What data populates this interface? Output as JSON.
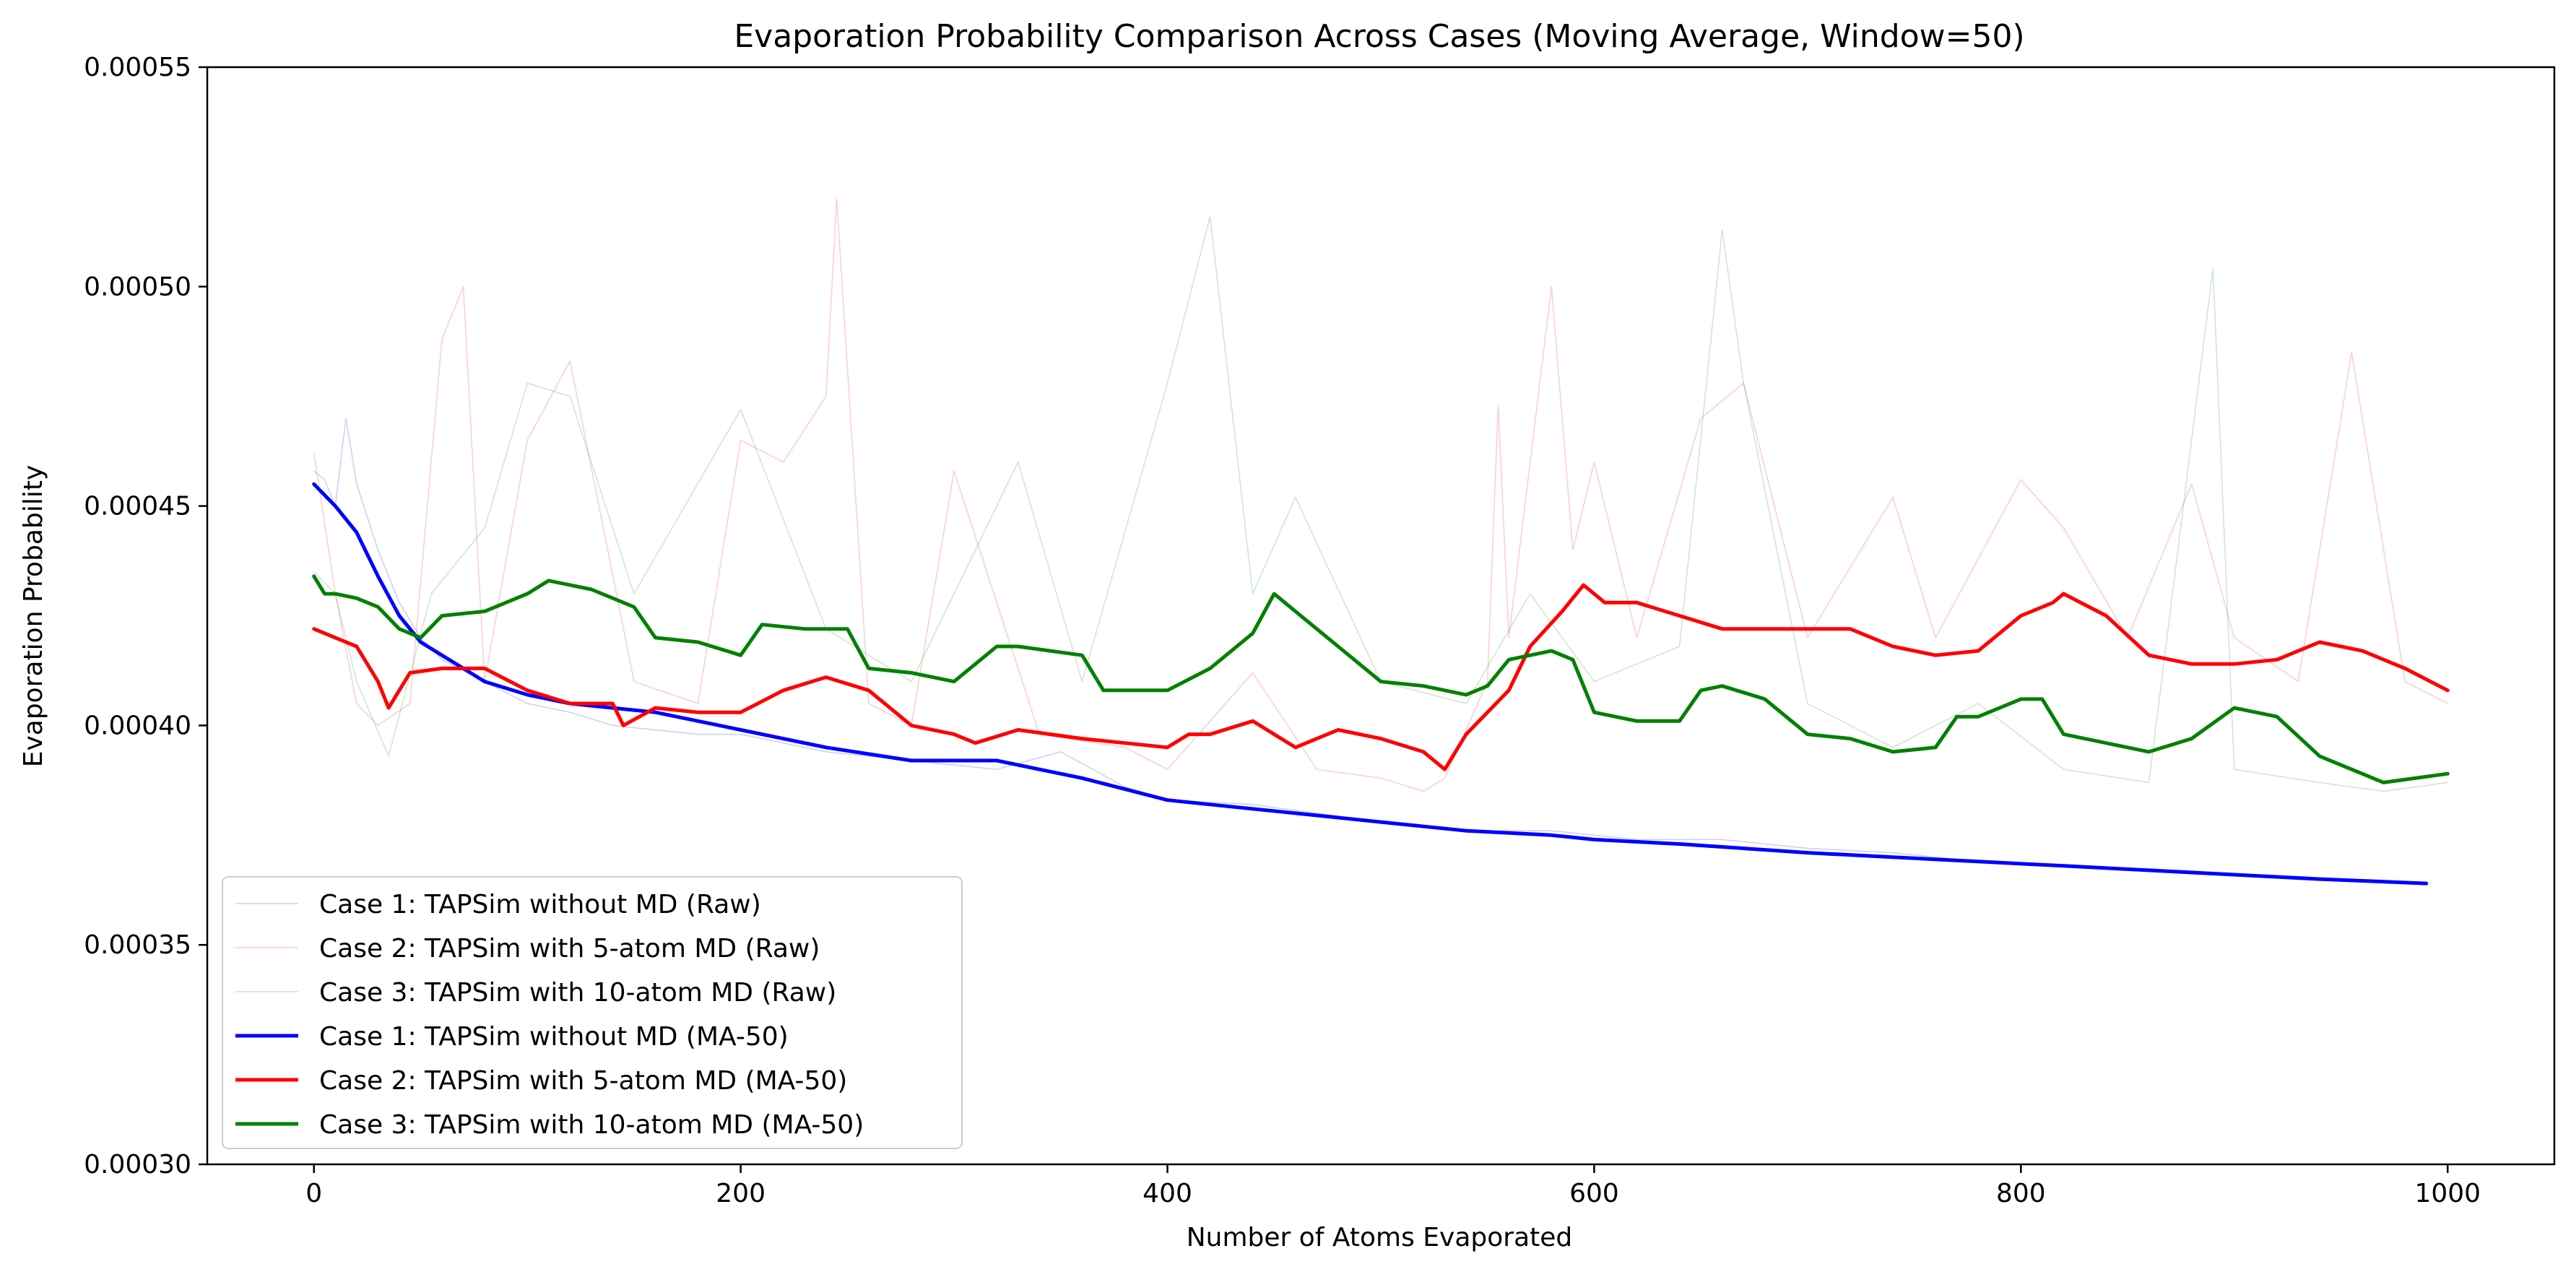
{
  "chart_data": {
    "type": "line",
    "title": "Evaporation Probability Comparison Across Cases (Moving Average, Window=50)",
    "xlabel": "Number of Atoms Evaporated",
    "ylabel": "Evaporation Probability",
    "xlim": [
      -50,
      1050
    ],
    "ylim": [
      0.0003,
      0.00055
    ],
    "x_ticks": [
      0,
      200,
      400,
      600,
      800,
      1000
    ],
    "x_tick_labels": [
      "0",
      "200",
      "400",
      "600",
      "800",
      "1000"
    ],
    "y_ticks": [
      0.0003,
      0.00035,
      0.0004,
      0.00045,
      0.0005,
      0.00055
    ],
    "y_tick_labels": [
      "0.00030",
      "0.00035",
      "0.00040",
      "0.00045",
      "0.00050",
      "0.00055"
    ],
    "grid": false,
    "legend_position": "lower-left",
    "series": [
      {
        "name": "Case 1: TAPSim without MD (Raw)",
        "color": "#0000ff",
        "opacity": 0.2,
        "width": 1.5,
        "x": [
          0,
          5,
          10,
          15,
          20,
          30,
          40,
          50,
          60,
          80,
          100,
          120,
          140,
          160,
          180,
          200,
          240,
          280,
          320,
          350,
          380,
          400,
          440,
          470,
          500,
          540,
          580,
          620,
          660,
          700,
          740,
          780,
          820,
          860,
          900,
          940,
          990
        ],
        "y": [
          0.000458,
          0.000456,
          0.00045,
          0.00047,
          0.000455,
          0.00044,
          0.000428,
          0.00042,
          0.000415,
          0.00041,
          0.000405,
          0.000403,
          0.0004,
          0.000399,
          0.000398,
          0.000398,
          0.000394,
          0.000392,
          0.00039,
          0.000394,
          0.000386,
          0.000383,
          0.000382,
          0.00038,
          0.000378,
          0.000376,
          0.000376,
          0.000374,
          0.000374,
          0.000372,
          0.000371,
          0.000369,
          0.000368,
          0.000367,
          0.000366,
          0.000365,
          0.000364
        ]
      },
      {
        "name": "Case 2: TAPSim with 5-atom MD (Raw)",
        "color": "#ff0000",
        "opacity": 0.2,
        "width": 1.5,
        "x": [
          0,
          10,
          20,
          30,
          45,
          60,
          70,
          80,
          100,
          120,
          150,
          180,
          200,
          220,
          240,
          245,
          260,
          280,
          300,
          340,
          380,
          400,
          440,
          470,
          500,
          520,
          530,
          550,
          555,
          560,
          580,
          590,
          600,
          620,
          650,
          670,
          700,
          740,
          760,
          800,
          820,
          850,
          880,
          900,
          930,
          955,
          980,
          1000
        ],
        "y": [
          0.000462,
          0.00043,
          0.000405,
          0.0004,
          0.000405,
          0.000488,
          0.0005,
          0.00041,
          0.000465,
          0.000483,
          0.00041,
          0.000405,
          0.000465,
          0.00046,
          0.000475,
          0.00052,
          0.000405,
          0.0004,
          0.000458,
          0.000398,
          0.000395,
          0.00039,
          0.000412,
          0.00039,
          0.000388,
          0.000385,
          0.000388,
          0.00041,
          0.000473,
          0.00042,
          0.0005,
          0.00044,
          0.00046,
          0.00042,
          0.00047,
          0.000478,
          0.00042,
          0.000452,
          0.00042,
          0.000456,
          0.000445,
          0.00042,
          0.000455,
          0.00042,
          0.00041,
          0.000485,
          0.00041,
          0.000405
        ]
      },
      {
        "name": "Case 3: TAPSim with 10-atom MD (Raw)",
        "color": "#008000",
        "opacity": 0.2,
        "width": 1.5,
        "x": [
          0,
          10,
          20,
          35,
          55,
          80,
          100,
          120,
          150,
          200,
          240,
          280,
          330,
          360,
          400,
          420,
          440,
          460,
          500,
          540,
          570,
          600,
          640,
          660,
          670,
          700,
          740,
          780,
          820,
          860,
          890,
          900,
          940,
          970,
          1000
        ],
        "y": [
          0.000435,
          0.00043,
          0.00041,
          0.000393,
          0.00043,
          0.000445,
          0.000478,
          0.000475,
          0.00043,
          0.000472,
          0.000422,
          0.00041,
          0.00046,
          0.00041,
          0.000478,
          0.000516,
          0.00043,
          0.000452,
          0.00041,
          0.000405,
          0.00043,
          0.00041,
          0.000418,
          0.000513,
          0.000478,
          0.000405,
          0.000395,
          0.000405,
          0.00039,
          0.000387,
          0.000504,
          0.00039,
          0.000387,
          0.000385,
          0.000387
        ]
      },
      {
        "name": "Case 1: TAPSim without MD (MA-50)",
        "color": "#0000ff",
        "opacity": 1,
        "width": 5,
        "x": [
          0,
          10,
          20,
          30,
          40,
          50,
          60,
          80,
          100,
          120,
          140,
          160,
          180,
          200,
          240,
          280,
          320,
          340,
          360,
          400,
          420,
          460,
          500,
          540,
          580,
          600,
          640,
          700,
          740,
          780,
          820,
          860,
          900,
          940,
          990
        ],
        "y": [
          0.000455,
          0.00045,
          0.000444,
          0.000434,
          0.000425,
          0.000419,
          0.000416,
          0.00041,
          0.000407,
          0.000405,
          0.000404,
          0.000403,
          0.000401,
          0.000399,
          0.000395,
          0.000392,
          0.000392,
          0.00039,
          0.000388,
          0.000383,
          0.000382,
          0.00038,
          0.000378,
          0.000376,
          0.000375,
          0.000374,
          0.000373,
          0.000371,
          0.00037,
          0.000369,
          0.000368,
          0.000367,
          0.000366,
          0.000365,
          0.000364
        ]
      },
      {
        "name": "Case 2: TAPSim with 5-atom MD (MA-50)",
        "color": "#ff0000",
        "opacity": 1,
        "width": 5,
        "x": [
          0,
          10,
          20,
          30,
          35,
          45,
          60,
          80,
          100,
          120,
          140,
          145,
          160,
          180,
          200,
          220,
          240,
          260,
          280,
          300,
          310,
          330,
          360,
          380,
          400,
          410,
          420,
          440,
          460,
          480,
          500,
          520,
          530,
          540,
          560,
          570,
          585,
          595,
          605,
          620,
          640,
          660,
          680,
          700,
          720,
          740,
          760,
          780,
          800,
          815,
          820,
          840,
          860,
          880,
          900,
          920,
          940,
          960,
          980,
          1000
        ],
        "y": [
          0.000422,
          0.00042,
          0.000418,
          0.00041,
          0.000404,
          0.000412,
          0.000413,
          0.000413,
          0.000408,
          0.000405,
          0.000405,
          0.0004,
          0.000404,
          0.000403,
          0.000403,
          0.000408,
          0.000411,
          0.000408,
          0.0004,
          0.000398,
          0.000396,
          0.000399,
          0.000397,
          0.000396,
          0.000395,
          0.000398,
          0.000398,
          0.000401,
          0.000395,
          0.000399,
          0.000397,
          0.000394,
          0.00039,
          0.000398,
          0.000408,
          0.000418,
          0.000426,
          0.000432,
          0.000428,
          0.000428,
          0.000425,
          0.000422,
          0.000422,
          0.000422,
          0.000422,
          0.000418,
          0.000416,
          0.000417,
          0.000425,
          0.000428,
          0.00043,
          0.000425,
          0.000416,
          0.000414,
          0.000414,
          0.000415,
          0.000419,
          0.000417,
          0.000413,
          0.000408
        ]
      },
      {
        "name": "Case 3: TAPSim with 10-atom MD (MA-50)",
        "color": "#008000",
        "opacity": 1,
        "width": 5,
        "x": [
          0,
          5,
          10,
          20,
          30,
          40,
          50,
          60,
          80,
          100,
          110,
          130,
          150,
          160,
          180,
          200,
          210,
          230,
          250,
          260,
          280,
          300,
          320,
          330,
          360,
          370,
          400,
          420,
          440,
          450,
          460,
          480,
          500,
          520,
          540,
          550,
          560,
          580,
          590,
          600,
          620,
          640,
          650,
          660,
          680,
          700,
          720,
          740,
          760,
          770,
          780,
          800,
          810,
          820,
          860,
          880,
          900,
          920,
          940,
          970,
          1000
        ],
        "y": [
          0.000434,
          0.00043,
          0.00043,
          0.000429,
          0.000427,
          0.000422,
          0.00042,
          0.000425,
          0.000426,
          0.00043,
          0.000433,
          0.000431,
          0.000427,
          0.00042,
          0.000419,
          0.000416,
          0.000423,
          0.000422,
          0.000422,
          0.000413,
          0.000412,
          0.00041,
          0.000418,
          0.000418,
          0.000416,
          0.000408,
          0.000408,
          0.000413,
          0.000421,
          0.00043,
          0.000426,
          0.000418,
          0.00041,
          0.000409,
          0.000407,
          0.000409,
          0.000415,
          0.000417,
          0.000415,
          0.000403,
          0.000401,
          0.000401,
          0.000408,
          0.000409,
          0.000406,
          0.000398,
          0.000397,
          0.000394,
          0.000395,
          0.000402,
          0.000402,
          0.000406,
          0.000406,
          0.000398,
          0.000394,
          0.000397,
          0.000404,
          0.000402,
          0.000393,
          0.000387,
          0.000389
        ]
      }
    ]
  }
}
